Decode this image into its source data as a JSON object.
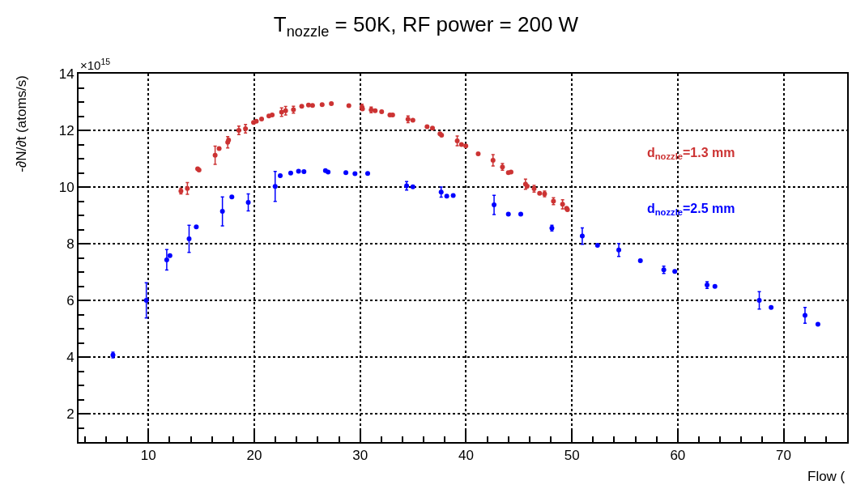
{
  "chart_data": {
    "type": "scatter",
    "title": "T$_{nozzle}$ = 50K, RF power = 200 W",
    "xlabel": "Flow (",
    "ylabel": "-∂N/∂t (atoms/s)",
    "annotations": [
      "×10$^{15}$"
    ],
    "xlim": [
      3.4,
      76
    ],
    "xticks": [
      10,
      20,
      30,
      40,
      50,
      60,
      70
    ],
    "ylim": [
      1,
      14
    ],
    "yticks": [
      2,
      4,
      6,
      8,
      10,
      12,
      14
    ],
    "grid": true,
    "legend": false,
    "marker": "circle",
    "series": [
      {
        "name": "d$_{nozzle}$=1.3 mm",
        "color": "#cc3333",
        "x": [
          13.07,
          13.68,
          14.65,
          14.78,
          16.3,
          16.68,
          17.49,
          17.57,
          18.54,
          19.17,
          19.93,
          20.19,
          20.69,
          21.38,
          21.69,
          22.58,
          22.96,
          23.7,
          24.48,
          25.12,
          25.5,
          26.41,
          27.28,
          28.93,
          30.17,
          30.22,
          31.04,
          31.42,
          32.03,
          32.81,
          33.07,
          34.52,
          34.98,
          36.32,
          36.83,
          37.54,
          37.69,
          39.17,
          39.57,
          39.98,
          41.15,
          42.55,
          43.44,
          44.0,
          44.25,
          45.62,
          45.78,
          46.43,
          46.95,
          47.42,
          48.26,
          49.12,
          49.5,
          49.58
        ],
        "values": [
          9.86,
          9.95,
          10.64,
          10.6,
          11.12,
          11.36,
          11.58,
          11.66,
          12.0,
          12.06,
          12.28,
          12.32,
          12.4,
          12.51,
          12.54,
          12.64,
          12.69,
          12.73,
          12.85,
          12.89,
          12.88,
          12.91,
          12.94,
          12.87,
          12.82,
          12.76,
          12.72,
          12.69,
          12.66,
          12.54,
          12.54,
          12.39,
          12.36,
          12.13,
          12.08,
          11.88,
          11.83,
          11.63,
          11.5,
          11.45,
          11.17,
          10.94,
          10.71,
          10.51,
          10.53,
          10.1,
          10.03,
          9.94,
          9.78,
          9.76,
          9.5,
          9.39,
          9.25,
          9.2
        ],
        "errors": [
          0.1,
          0.21,
          null,
          null,
          0.32,
          null,
          0.2,
          null,
          0.15,
          0.15,
          null,
          null,
          null,
          null,
          null,
          0.15,
          0.15,
          0.12,
          null,
          null,
          null,
          null,
          null,
          null,
          0.1,
          null,
          0.1,
          null,
          null,
          null,
          null,
          0.12,
          null,
          null,
          null,
          null,
          null,
          0.17,
          null,
          null,
          null,
          0.2,
          0.12,
          null,
          null,
          0.18,
          null,
          0.12,
          null,
          0.1,
          0.12,
          0.16,
          null,
          null
        ]
      },
      {
        "name": "d$_{nozzle}$=2.5 mm",
        "color": "#0000ff",
        "x": [
          6.65,
          9.8,
          11.73,
          12.03,
          13.84,
          14.52,
          16.99,
          17.88,
          19.43,
          21.97,
          22.45,
          23.44,
          24.18,
          24.69,
          26.72,
          26.97,
          28.65,
          29.51,
          30.71,
          34.39,
          34.98,
          37.65,
          38.18,
          38.79,
          42.65,
          44.0,
          45.17,
          48.11,
          50.98,
          52.42,
          54.43,
          56.47,
          58.68,
          59.72,
          62.77,
          63.51,
          67.7,
          68.82,
          72.02,
          73.24
        ],
        "values": [
          4.07,
          6.0,
          7.43,
          7.58,
          8.17,
          8.59,
          9.14,
          9.65,
          9.46,
          10.02,
          10.4,
          10.49,
          10.56,
          10.54,
          10.58,
          10.53,
          10.51,
          10.47,
          10.48,
          10.04,
          10.01,
          9.82,
          9.68,
          9.7,
          9.37,
          9.04,
          9.04,
          8.55,
          8.27,
          7.94,
          7.78,
          7.4,
          7.08,
          7.02,
          6.54,
          6.49,
          6.0,
          5.75,
          5.47,
          5.16
        ],
        "errors": [
          0.1,
          0.62,
          0.36,
          null,
          0.48,
          null,
          0.51,
          null,
          0.3,
          0.53,
          null,
          null,
          null,
          null,
          null,
          null,
          null,
          null,
          null,
          0.15,
          null,
          0.18,
          null,
          null,
          0.34,
          null,
          null,
          0.1,
          0.29,
          null,
          0.23,
          null,
          0.13,
          null,
          0.12,
          null,
          0.31,
          null,
          0.28,
          null
        ]
      }
    ]
  }
}
